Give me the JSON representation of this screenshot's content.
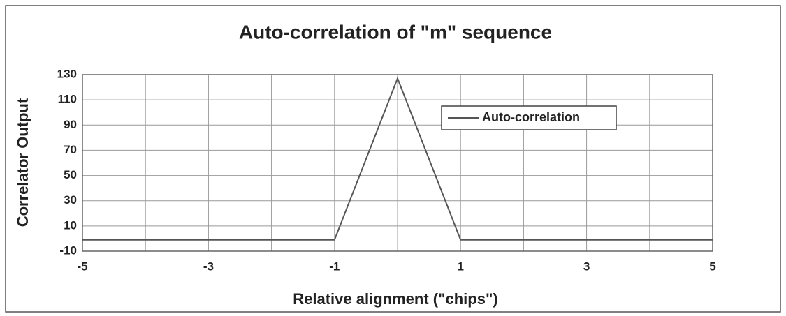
{
  "chart_data": {
    "type": "line",
    "title": "Auto-correlation of \"m\" sequence",
    "xlabel": "Relative alignment (\"chips\")",
    "ylabel": "Correlator Output",
    "x": [
      -5,
      -1,
      0,
      1,
      5
    ],
    "series": [
      {
        "name": "Auto-correlation",
        "color": "#555555",
        "values": [
          -1,
          -1,
          127,
          -1,
          -1
        ]
      }
    ],
    "xlim": [
      -5,
      5
    ],
    "xticks": [
      -5,
      -3,
      -1,
      1,
      3,
      5
    ],
    "xminorticks": [
      -4,
      -2,
      0,
      2,
      4
    ],
    "ylim": [
      -10,
      130
    ],
    "yticks": [
      -10,
      10,
      30,
      50,
      70,
      90,
      110,
      130
    ],
    "grid": true,
    "legend": "upper right"
  }
}
